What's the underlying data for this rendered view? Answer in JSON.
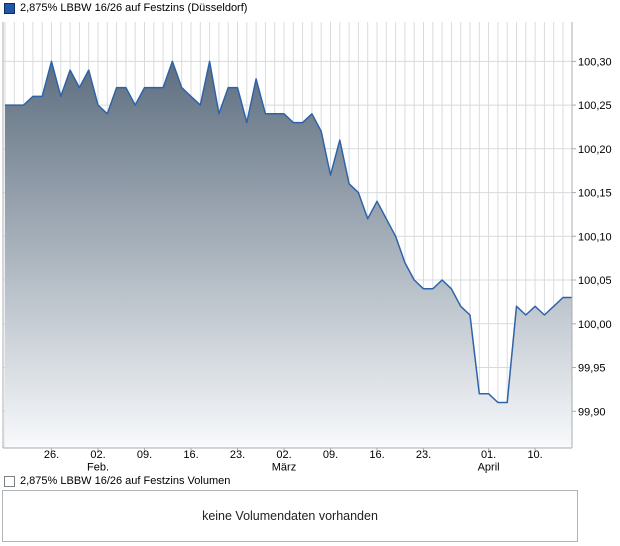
{
  "volume_legend": {
    "label": "2,875% LBBW 16/26 auf Festzins Volumen"
  },
  "volume_panel": {
    "message": "keine Volumendaten vorhanden"
  },
  "chart_data": {
    "type": "area",
    "title": "2,875% LBBW 16/26 auf Festzins (Düsseldorf)",
    "xlabel": "",
    "ylabel": "",
    "legend_position": "top-left",
    "grid": true,
    "x_dates": [
      "19.01",
      "20.01",
      "21.01",
      "22.01",
      "23.01",
      "26.01",
      "27.01",
      "28.01",
      "29.01",
      "30.01",
      "02.02",
      "03.02",
      "04.02",
      "05.02",
      "06.02",
      "09.02",
      "10.02",
      "11.02",
      "12.02",
      "13.02",
      "16.02",
      "17.02",
      "18.02",
      "19.02",
      "20.02",
      "23.02",
      "24.02",
      "25.02",
      "26.02",
      "27.02",
      "02.03",
      "03.03",
      "04.03",
      "05.03",
      "06.03",
      "09.03",
      "10.03",
      "11.03",
      "12.03",
      "13.03",
      "16.03",
      "17.03",
      "18.03",
      "19.03",
      "20.03",
      "23.03",
      "24.03",
      "25.03",
      "26.03",
      "27.03",
      "30.03",
      "31.03",
      "01.04",
      "02.04",
      "07.04",
      "08.04",
      "09.04",
      "10.04",
      "13.04",
      "14.04",
      "15.04",
      "16.04"
    ],
    "values": [
      100.25,
      100.25,
      100.25,
      100.26,
      100.26,
      100.3,
      100.26,
      100.29,
      100.27,
      100.29,
      100.25,
      100.24,
      100.27,
      100.27,
      100.25,
      100.27,
      100.27,
      100.27,
      100.3,
      100.27,
      100.26,
      100.25,
      100.3,
      100.24,
      100.27,
      100.27,
      100.23,
      100.28,
      100.24,
      100.24,
      100.24,
      100.23,
      100.23,
      100.24,
      100.22,
      100.17,
      100.21,
      100.16,
      100.15,
      100.12,
      100.14,
      100.12,
      100.1,
      100.07,
      100.05,
      100.04,
      100.04,
      100.05,
      100.04,
      100.02,
      100.01,
      99.92,
      99.92,
      99.91,
      99.91,
      100.02,
      100.01,
      100.02,
      100.01,
      100.02,
      100.03,
      100.03
    ],
    "x_ticks": [
      {
        "index": 5,
        "label": "26."
      },
      {
        "index": 10,
        "label": "02.",
        "month": "Feb."
      },
      {
        "index": 15,
        "label": "09."
      },
      {
        "index": 20,
        "label": "16."
      },
      {
        "index": 25,
        "label": "23."
      },
      {
        "index": 30,
        "label": "02.",
        "month": "März"
      },
      {
        "index": 35,
        "label": "09."
      },
      {
        "index": 40,
        "label": "16."
      },
      {
        "index": 45,
        "label": "23."
      },
      {
        "index": 52,
        "label": "01.",
        "month": "April"
      },
      {
        "index": 57,
        "label": "10."
      }
    ],
    "y_ticks": [
      "100,30",
      "100,25",
      "100,20",
      "100,15",
      "100,10",
      "100,05",
      "100,00",
      "99,95",
      "99,90"
    ],
    "y_tick_values": [
      100.3,
      100.25,
      100.2,
      100.15,
      100.1,
      100.05,
      100.0,
      99.95,
      99.9
    ],
    "ylim": [
      99.858,
      100.345
    ],
    "colors": {
      "line": "#2f63a8",
      "fill_top": "#4e6073",
      "fill_bottom": "#f8fafc",
      "grid": "#d8dbde",
      "axis": "#a8acb0",
      "price_swatch": "#2257a8",
      "price_swatch_border": "#0c2f63",
      "volume_swatch_border": "#7d8286",
      "text": "#000000"
    }
  }
}
